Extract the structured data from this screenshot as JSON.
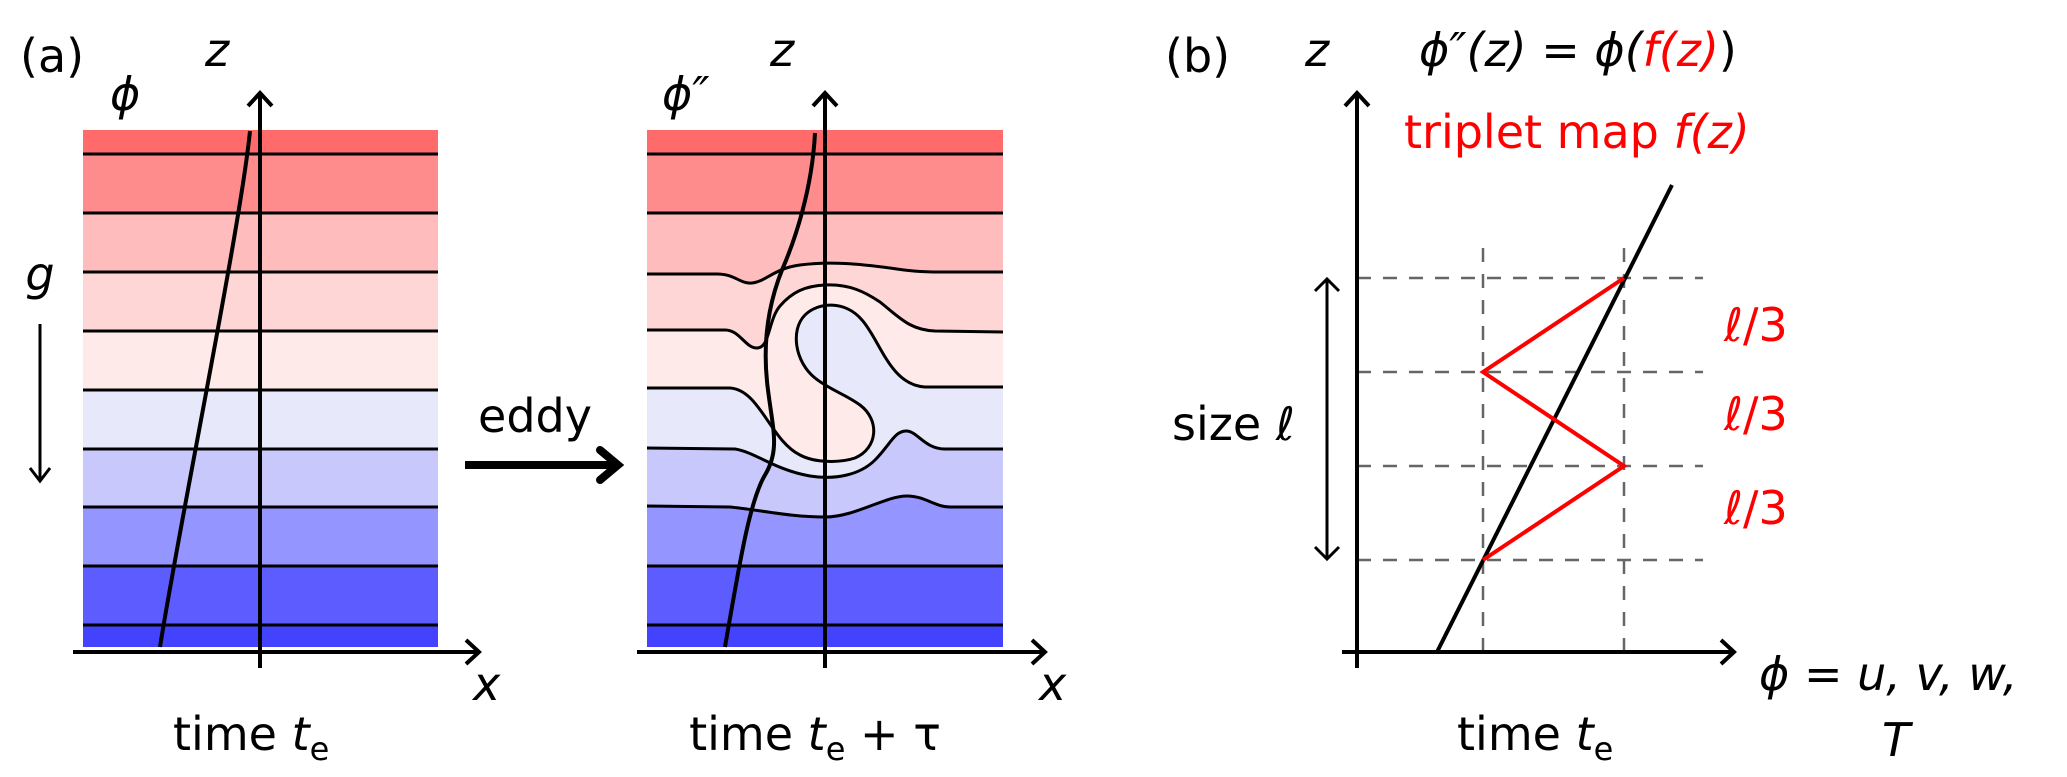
{
  "panel_a": {
    "label": "(a)",
    "gravity_label": "g",
    "eddy_label": "eddy",
    "band_colors": [
      "#ff6b6b",
      "#ff8c8c",
      "#ffbcbc",
      "#ffd6d6",
      "#ffeaea",
      "#e8e8fb",
      "#c8c8fc",
      "#9595ff",
      "#5c5cff",
      "#4242ff"
    ],
    "before": {
      "field_label": "ϕ",
      "z_label": "z",
      "x_label": "x",
      "time_label": "time ",
      "time_var": "t",
      "time_sub": "e"
    },
    "after": {
      "field_label": "ϕ″",
      "z_label": "z",
      "x_label": "x",
      "time_label": "time ",
      "time_var": "t",
      "time_sub": "e",
      "time_suffix": " + τ"
    }
  },
  "panel_b": {
    "label": "(b)",
    "z_label": "z",
    "formula_lhs": "ϕ″(z) = ϕ(",
    "formula_inner": "f(z)",
    "formula_close": ")",
    "triplet_label": "triplet map ",
    "triplet_func": "f(z)",
    "segment_labels": [
      "ℓ/3",
      "ℓ/3",
      "ℓ/3"
    ],
    "size_label": "size ",
    "size_var": "ℓ",
    "x_axis_label_line1": "ϕ = u, v, w,",
    "x_axis_label_line2": "T",
    "time_label": "time ",
    "time_var": "t",
    "time_sub": "e",
    "accent_color": "#ff0000"
  }
}
